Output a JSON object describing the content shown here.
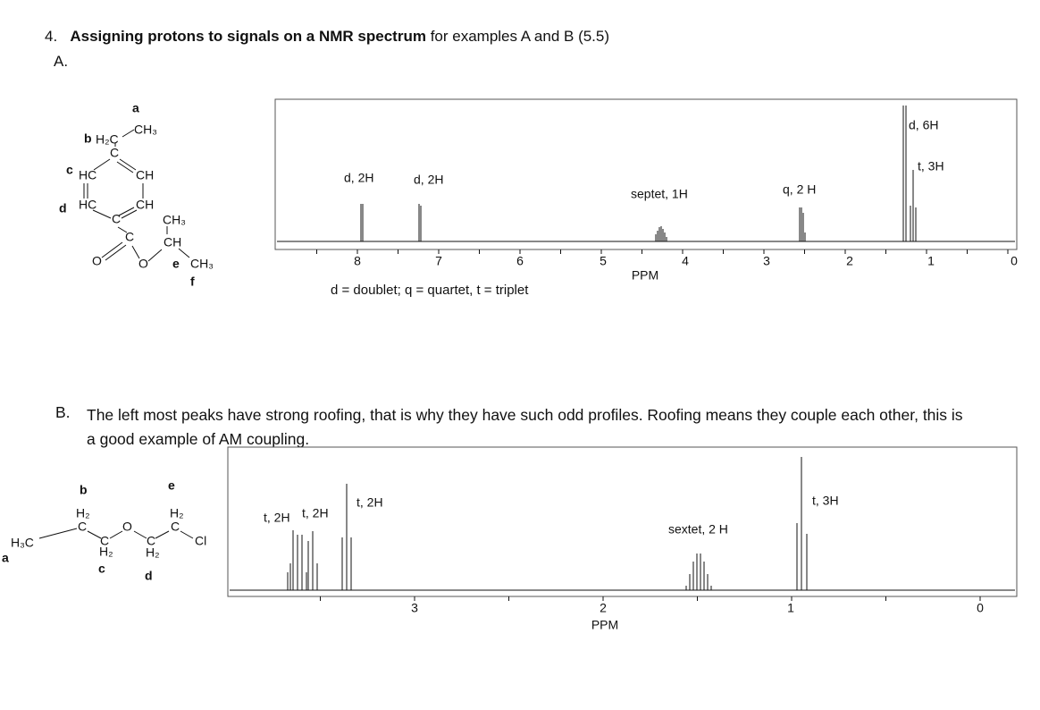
{
  "heading": {
    "number": "4.",
    "bold": "Assigning protons to signals on a NMR spectrum",
    "rest": "for examples A and B (5.5)"
  },
  "part_a": {
    "label": "A.",
    "structure": {
      "proton_letters": [
        "a",
        "b",
        "c",
        "d",
        "e",
        "f"
      ],
      "groups": [
        "CH₃",
        "H₂C",
        "C",
        "HC",
        "CH",
        "HC",
        "CH",
        "C",
        "CH₃",
        "C",
        "CH",
        "O",
        "O",
        "CH₃"
      ]
    },
    "spectrum": {
      "peak_labels": [
        "d, 2H",
        "d, 2H",
        "septet, 1H",
        "q, 2 H",
        "d, 6H",
        "t, 3H"
      ],
      "axis_ticks": [
        8,
        7,
        6,
        5,
        4,
        3,
        2,
        1,
        0
      ],
      "axis_label": "PPM"
    },
    "footnote": "d = doublet; q = quartet, t = triplet"
  },
  "part_b": {
    "label": "B.",
    "text": "The left most peaks have strong roofing, that is why they have such odd profiles.  Roofing means they couple each other, this is a good example of AM coupling.",
    "structure": {
      "proton_letters": [
        "a",
        "b",
        "c",
        "d",
        "e"
      ],
      "groups": [
        "H₃C",
        "H₂",
        "C",
        "C",
        "H₂",
        "O",
        "C",
        "H₂",
        "H₂",
        "C",
        "Cl"
      ]
    },
    "spectrum": {
      "peak_labels": [
        "t, 2H",
        "t, 2H",
        "t, 2H",
        "sextet, 2 H",
        "t, 3H"
      ],
      "axis_ticks": [
        3,
        2,
        1,
        0
      ],
      "axis_label": "PPM"
    }
  }
}
